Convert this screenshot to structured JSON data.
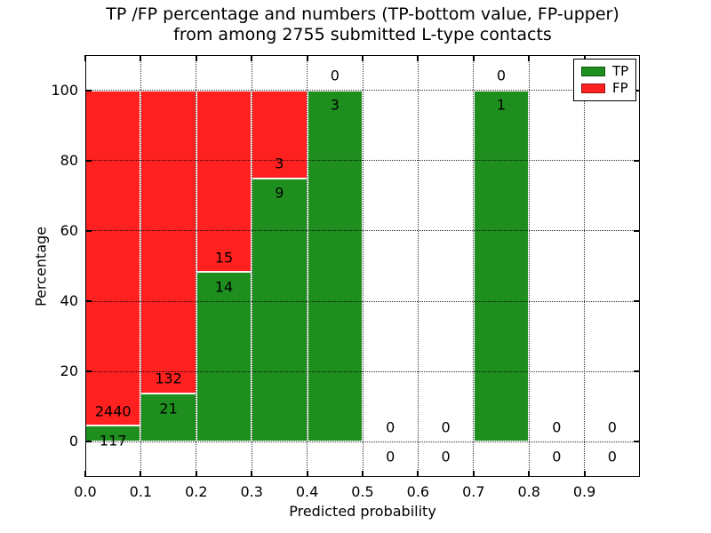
{
  "chart_data": {
    "type": "bar",
    "variant": "stacked-percentage",
    "title_line1": "TP /FP percentage and numbers (TP-bottom value, FP-upper)",
    "title_line2": "from among 2755 submitted L-type contacts",
    "xlabel": "Predicted probability",
    "ylabel": "Percentage",
    "xlim": [
      0.0,
      1.0
    ],
    "ylim": [
      -10,
      110
    ],
    "xticks": [
      0.0,
      0.1,
      0.2,
      0.3,
      0.4,
      0.5,
      0.6,
      0.7,
      0.8,
      0.9
    ],
    "xtick_labels": [
      "0.0",
      "0.1",
      "0.2",
      "0.3",
      "0.4",
      "0.5",
      "0.6",
      "0.7",
      "0.8",
      "0.9"
    ],
    "yticks": [
      0,
      20,
      40,
      60,
      80,
      100
    ],
    "ytick_labels": [
      "0",
      "20",
      "40",
      "60",
      "80",
      "100"
    ],
    "grid": {
      "style": "dotted",
      "axes": "both",
      "drawn_over_bars": true
    },
    "legend": {
      "position": "upper-right",
      "entries": [
        {
          "label": "TP",
          "color": "#1e8e1e"
        },
        {
          "label": "FP",
          "color": "#ff2020"
        }
      ]
    },
    "bins": [
      {
        "range": [
          0.0,
          0.1
        ],
        "tp": 117,
        "fp": 2440
      },
      {
        "range": [
          0.1,
          0.2
        ],
        "tp": 21,
        "fp": 132
      },
      {
        "range": [
          0.2,
          0.3
        ],
        "tp": 14,
        "fp": 15
      },
      {
        "range": [
          0.3,
          0.4
        ],
        "tp": 9,
        "fp": 3
      },
      {
        "range": [
          0.4,
          0.5
        ],
        "tp": 3,
        "fp": 0
      },
      {
        "range": [
          0.5,
          0.6
        ],
        "tp": 0,
        "fp": 0
      },
      {
        "range": [
          0.6,
          0.7
        ],
        "tp": 0,
        "fp": 0
      },
      {
        "range": [
          0.7,
          0.8
        ],
        "tp": 1,
        "fp": 0
      },
      {
        "range": [
          0.8,
          0.9
        ],
        "tp": 0,
        "fp": 0
      },
      {
        "range": [
          0.9,
          1.0
        ],
        "tp": 0,
        "fp": 0
      }
    ],
    "colors": {
      "tp": "#1e8e1e",
      "fp": "#ff2020",
      "background": "#ffffff",
      "frame": "#000000"
    }
  }
}
